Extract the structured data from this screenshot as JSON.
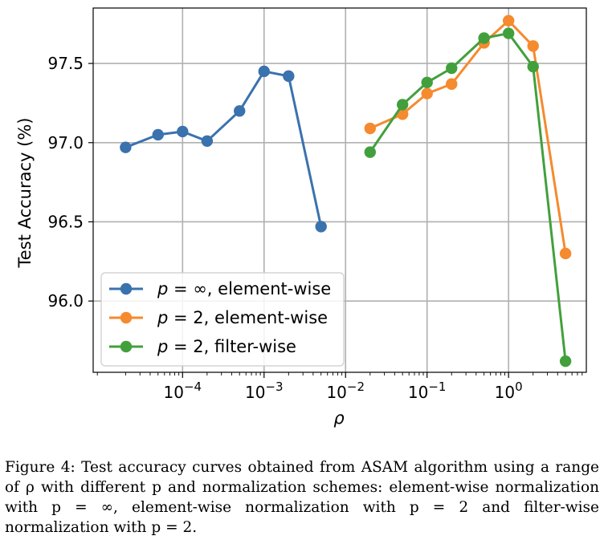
{
  "chart_data": {
    "type": "line",
    "xscale": "log",
    "xlabel": "ρ",
    "ylabel": "Test Accuracy (%)",
    "xlim": [
      8e-06,
      9
    ],
    "ylim": [
      95.55,
      97.85
    ],
    "grid": true,
    "legend_position": "lower-left",
    "yticks": [
      96.0,
      96.5,
      97.0,
      97.5
    ],
    "ytick_labels": [
      "96.0",
      "96.5",
      "97.0",
      "97.5"
    ],
    "xticks": [
      {
        "value": 0.0001,
        "base": "10",
        "exp": "−4"
      },
      {
        "value": 0.001,
        "base": "10",
        "exp": "−3"
      },
      {
        "value": 0.01,
        "base": "10",
        "exp": "−2"
      },
      {
        "value": 0.1,
        "base": "10",
        "exp": "−1"
      },
      {
        "value": 1,
        "base": "10",
        "exp": "0"
      }
    ],
    "series": [
      {
        "name": "p = ∞, element-wise",
        "legend_p": "p",
        "legend_val": " = ∞",
        "legend_rest": ", element-wise",
        "color": "#3a72ad",
        "x": [
          2e-05,
          5e-05,
          0.0001,
          0.0002,
          0.0005,
          0.001,
          0.002,
          0.005
        ],
        "y": [
          96.97,
          97.05,
          97.07,
          97.01,
          97.2,
          97.45,
          97.42,
          96.47
        ]
      },
      {
        "name": "p = 2, element-wise",
        "legend_p": "p",
        "legend_val": " = 2",
        "legend_rest": ", element-wise",
        "color": "#f58a2e",
        "x": [
          0.02,
          0.05,
          0.1,
          0.2,
          0.5,
          1,
          2,
          5
        ],
        "y": [
          97.09,
          97.18,
          97.31,
          97.37,
          97.63,
          97.77,
          97.61,
          96.3
        ]
      },
      {
        "name": "p = 2, filter-wise",
        "legend_p": "p",
        "legend_val": " = 2",
        "legend_rest": ", filter-wise",
        "color": "#42a03c",
        "x": [
          0.02,
          0.05,
          0.1,
          0.2,
          0.5,
          1,
          2,
          5
        ],
        "y": [
          96.94,
          97.24,
          97.38,
          97.47,
          97.66,
          97.69,
          97.48,
          95.62
        ]
      }
    ]
  },
  "caption": "Figure 4: Test accuracy curves obtained from ASAM algorithm using a range of ρ with different p and normalization schemes: element-wise normalization with p = ∞, element-wise normalization with p = 2 and filter-wise normalization with p = 2."
}
